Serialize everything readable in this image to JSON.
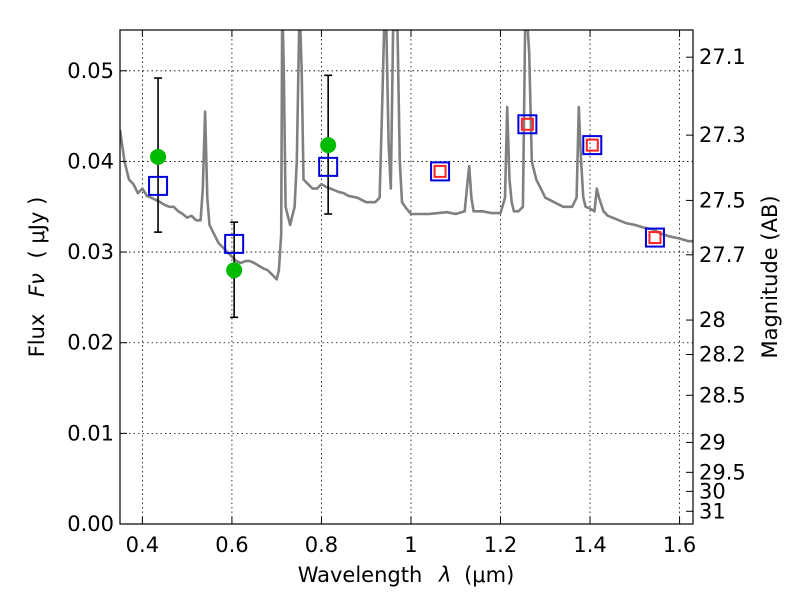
{
  "chart_data": {
    "type": "scatter",
    "xlabel_text": "Wavelength",
    "xlabel_symbol": "λ",
    "xlabel_unit": "(μm)",
    "ylabel_text": "Flux",
    "ylabel_symbol": "Fν",
    "ylabel_unit": "( μJy )",
    "y2label": "Magnitude (AB)",
    "xlim": [
      0.35,
      1.63
    ],
    "ylim": [
      0.0,
      0.0545
    ],
    "grid": true,
    "x_ticks": [
      {
        "value": 0.4,
        "label": "0.4"
      },
      {
        "value": 0.6,
        "label": "0.6"
      },
      {
        "value": 0.8,
        "label": "0.8"
      },
      {
        "value": 1.0,
        "label": "1"
      },
      {
        "value": 1.2,
        "label": "1.2"
      },
      {
        "value": 1.4,
        "label": "1.4"
      },
      {
        "value": 1.6,
        "label": "1.6"
      }
    ],
    "y_ticks": [
      {
        "value": 0.0,
        "label": "0.00"
      },
      {
        "value": 0.01,
        "label": "0.01"
      },
      {
        "value": 0.02,
        "label": "0.02"
      },
      {
        "value": 0.03,
        "label": "0.03"
      },
      {
        "value": 0.04,
        "label": "0.04"
      },
      {
        "value": 0.05,
        "label": "0.05"
      }
    ],
    "y2_ticks": [
      {
        "label": "27.1",
        "flux": 0.0515
      },
      {
        "label": "27.3",
        "flux": 0.0429
      },
      {
        "label": "27.5",
        "flux": 0.0357
      },
      {
        "label": "27.7",
        "flux": 0.0297
      },
      {
        "label": "28",
        "flux": 0.0225
      },
      {
        "label": "28.2",
        "flux": 0.0187
      },
      {
        "label": "28.5",
        "flux": 0.0142
      },
      {
        "label": "29",
        "flux": 0.009
      },
      {
        "label": "29.5",
        "flux": 0.0057
      },
      {
        "label": "30",
        "flux": 0.0036
      },
      {
        "label": "31",
        "flux": 0.0014
      }
    ],
    "series": [
      {
        "kind": "line",
        "color": "#808080",
        "x": [
          0.35,
          0.36,
          0.37,
          0.38,
          0.39,
          0.4,
          0.41,
          0.42,
          0.44,
          0.45,
          0.46,
          0.47,
          0.48,
          0.49,
          0.5,
          0.51,
          0.52,
          0.53,
          0.535,
          0.54,
          0.545,
          0.55,
          0.56,
          0.57,
          0.58,
          0.59,
          0.6,
          0.61,
          0.62,
          0.63,
          0.64,
          0.65,
          0.66,
          0.67,
          0.68,
          0.69,
          0.7,
          0.705,
          0.71,
          0.712,
          0.714,
          0.716,
          0.72,
          0.73,
          0.74,
          0.745,
          0.75,
          0.753,
          0.756,
          0.76,
          0.77,
          0.78,
          0.79,
          0.8,
          0.81,
          0.82,
          0.83,
          0.84,
          0.85,
          0.86,
          0.88,
          0.9,
          0.92,
          0.93,
          0.935,
          0.94,
          0.945,
          0.95,
          0.955,
          0.96,
          0.965,
          0.97,
          0.975,
          0.98,
          0.99,
          1.0,
          1.02,
          1.04,
          1.06,
          1.08,
          1.1,
          1.12,
          1.125,
          1.13,
          1.135,
          1.14,
          1.16,
          1.18,
          1.2,
          1.21,
          1.215,
          1.22,
          1.225,
          1.23,
          1.24,
          1.25,
          1.255,
          1.258,
          1.261,
          1.264,
          1.27,
          1.28,
          1.29,
          1.3,
          1.32,
          1.34,
          1.36,
          1.37,
          1.375,
          1.38,
          1.385,
          1.39,
          1.4,
          1.41,
          1.415,
          1.42,
          1.43,
          1.44,
          1.46,
          1.48,
          1.5,
          1.52,
          1.54,
          1.56,
          1.58,
          1.6,
          1.62,
          1.63
        ],
        "y": [
          0.0435,
          0.04,
          0.038,
          0.0375,
          0.0365,
          0.037,
          0.0362,
          0.036,
          0.0355,
          0.0352,
          0.035,
          0.035,
          0.0345,
          0.0342,
          0.0338,
          0.034,
          0.0335,
          0.0335,
          0.037,
          0.0455,
          0.036,
          0.033,
          0.032,
          0.031,
          0.0305,
          0.03,
          0.0295,
          0.029,
          0.0288,
          0.029,
          0.029,
          0.0288,
          0.0285,
          0.0282,
          0.028,
          0.0275,
          0.027,
          0.028,
          0.032,
          0.0545,
          0.0545,
          0.05,
          0.035,
          0.033,
          0.035,
          0.04,
          0.0545,
          0.0545,
          0.05,
          0.038,
          0.0375,
          0.037,
          0.037,
          0.0375,
          0.0372,
          0.037,
          0.0368,
          0.0366,
          0.0365,
          0.0362,
          0.036,
          0.0355,
          0.0355,
          0.036,
          0.045,
          0.0545,
          0.0545,
          0.042,
          0.037,
          0.0545,
          0.0545,
          0.0545,
          0.04,
          0.0355,
          0.0348,
          0.0342,
          0.0342,
          0.0342,
          0.0343,
          0.0344,
          0.0342,
          0.0345,
          0.037,
          0.0395,
          0.036,
          0.0345,
          0.0345,
          0.0343,
          0.0343,
          0.036,
          0.046,
          0.038,
          0.0355,
          0.0345,
          0.0345,
          0.035,
          0.0545,
          0.0545,
          0.0545,
          0.052,
          0.04,
          0.038,
          0.037,
          0.036,
          0.0355,
          0.035,
          0.035,
          0.036,
          0.046,
          0.04,
          0.036,
          0.035,
          0.0348,
          0.0345,
          0.037,
          0.036,
          0.0345,
          0.034,
          0.0336,
          0.0332,
          0.033,
          0.0327,
          0.0325,
          0.032,
          0.0317,
          0.0315,
          0.0312,
          0.0312
        ]
      },
      {
        "kind": "errorbar",
        "color": "#000000",
        "x": [
          0.435,
          0.605,
          0.815
        ],
        "ylow": [
          0.0322,
          0.0228,
          0.0342
        ],
        "yhigh": [
          0.0492,
          0.0333,
          0.0495
        ]
      },
      {
        "kind": "points",
        "marker": "circle",
        "color": "#00bb00",
        "x": [
          0.435,
          0.605,
          0.815
        ],
        "y": [
          0.0405,
          0.028,
          0.0418
        ]
      },
      {
        "kind": "points",
        "marker": "square-open",
        "color": "#0000dd",
        "size": 18,
        "x": [
          0.435,
          0.605,
          0.815,
          1.065,
          1.26,
          1.405,
          1.545
        ],
        "y": [
          0.0373,
          0.0309,
          0.0394,
          0.0389,
          0.0441,
          0.0418,
          0.0316
        ]
      },
      {
        "kind": "points",
        "marker": "square-open",
        "color": "#ff2222",
        "size": 11,
        "x": [
          1.065,
          1.26,
          1.405,
          1.545
        ],
        "y": [
          0.0389,
          0.0441,
          0.0418,
          0.0316
        ]
      }
    ]
  }
}
